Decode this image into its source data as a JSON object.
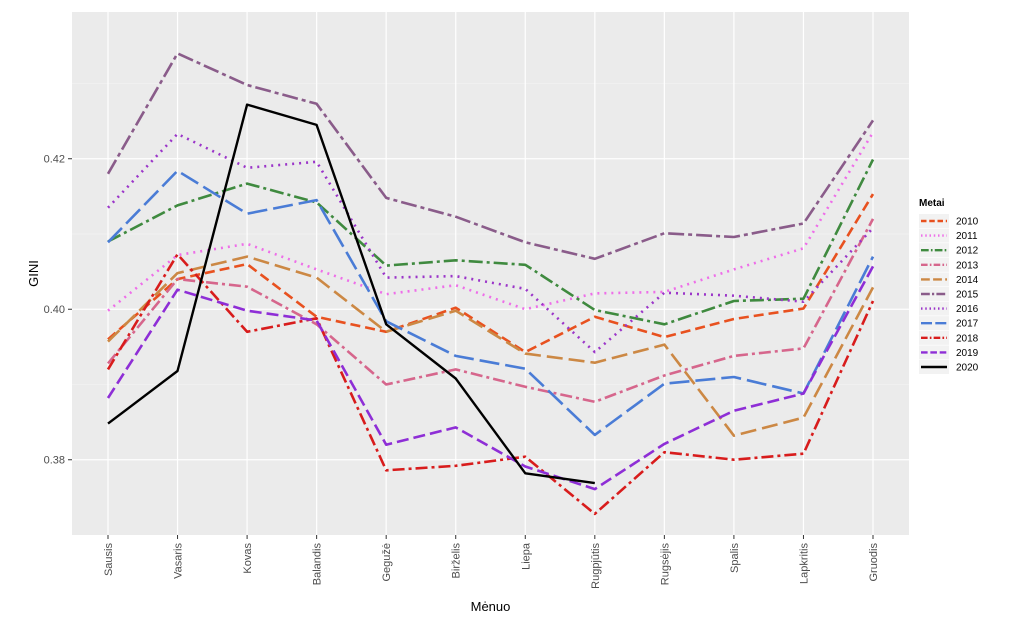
{
  "chart_data": {
    "type": "line",
    "xlabel": "Mėnuo",
    "ylabel": "GINI",
    "categories": [
      "Sausis",
      "Vasaris",
      "Kovas",
      "Balandis",
      "Gegužė",
      "Birželis",
      "Liepa",
      "Rugpjūtis",
      "Rugsėjis",
      "Spalis",
      "Lapkritis",
      "Gruodis"
    ],
    "ylim": [
      0.37,
      0.4395
    ],
    "yticks": [
      0.38,
      0.4,
      0.42
    ],
    "ytick_labels": [
      "0.38",
      "0.40",
      "0.42"
    ],
    "grid": true,
    "legend": {
      "title": "Metai",
      "position": "right"
    },
    "series": [
      {
        "name": "2010",
        "color": "#e8511f",
        "dash": "10,5",
        "values": [
          0.396,
          0.404,
          0.406,
          0.399,
          0.397,
          0.4002,
          0.3943,
          0.399,
          0.3963,
          0.3987,
          0.4001,
          0.4153
        ]
      },
      {
        "name": "2011",
        "color": "#ee6ee9",
        "dash": "2,5",
        "values": [
          0.3998,
          0.4072,
          0.4087,
          0.4053,
          0.402,
          0.4032,
          0.4,
          0.4021,
          0.4023,
          0.4053,
          0.4081,
          0.4235
        ]
      },
      {
        "name": "2012",
        "color": "#3f8a3f",
        "dash": "14,4,3,4",
        "values": [
          0.409,
          0.4138,
          0.4167,
          0.4142,
          0.4058,
          0.4065,
          0.4059,
          0.3999,
          0.398,
          0.4011,
          0.4014,
          0.4199
        ]
      },
      {
        "name": "2013",
        "color": "#d6668c",
        "dash": "12,4,3,4",
        "values": [
          0.3928,
          0.404,
          0.403,
          0.398,
          0.39,
          0.392,
          0.3897,
          0.3877,
          0.3912,
          0.3938,
          0.3948,
          0.412
        ]
      },
      {
        "name": "2014",
        "color": "#cc8844",
        "dash": "16,6",
        "values": [
          0.3957,
          0.4048,
          0.407,
          0.4042,
          0.397,
          0.3998,
          0.3941,
          0.3929,
          0.3953,
          0.3832,
          0.3856,
          0.4029
        ]
      },
      {
        "name": "2015",
        "color": "#8a5c8a",
        "dash": "16,4,4,4",
        "values": [
          0.418,
          0.434,
          0.4298,
          0.4273,
          0.4148,
          0.4123,
          0.4089,
          0.4067,
          0.4101,
          0.4096,
          0.4114,
          0.4251
        ]
      },
      {
        "name": "2016",
        "color": "#9b35c9",
        "dash": "2,5",
        "values": [
          0.4135,
          0.4233,
          0.4188,
          0.4196,
          0.4042,
          0.4044,
          0.4027,
          0.3943,
          0.4022,
          0.4018,
          0.401,
          0.4108
        ]
      },
      {
        "name": "2017",
        "color": "#4a7cd6",
        "dash": "20,6",
        "values": [
          0.4089,
          0.4184,
          0.4127,
          0.4145,
          0.3984,
          0.3938,
          0.3921,
          0.3833,
          0.3901,
          0.391,
          0.3888,
          0.407
        ]
      },
      {
        "name": "2018",
        "color": "#d81c1c",
        "dash": "12,4,3,4",
        "values": [
          0.392,
          0.4073,
          0.397,
          0.3988,
          0.3786,
          0.3792,
          0.3804,
          0.3728,
          0.381,
          0.38,
          0.3808,
          0.4011
        ]
      },
      {
        "name": "2019",
        "color": "#8e2ed6",
        "dash": "12,5",
        "values": [
          0.3882,
          0.4026,
          0.3998,
          0.3985,
          0.382,
          0.3843,
          0.3791,
          0.3761,
          0.3821,
          0.3865,
          0.3888,
          0.4057
        ]
      },
      {
        "name": "2020",
        "color": "#000000",
        "dash": "",
        "values": [
          0.3848,
          0.3918,
          0.4272,
          0.4245,
          0.398,
          0.3908,
          0.3782,
          0.3769,
          null,
          null,
          null,
          null
        ]
      }
    ]
  }
}
